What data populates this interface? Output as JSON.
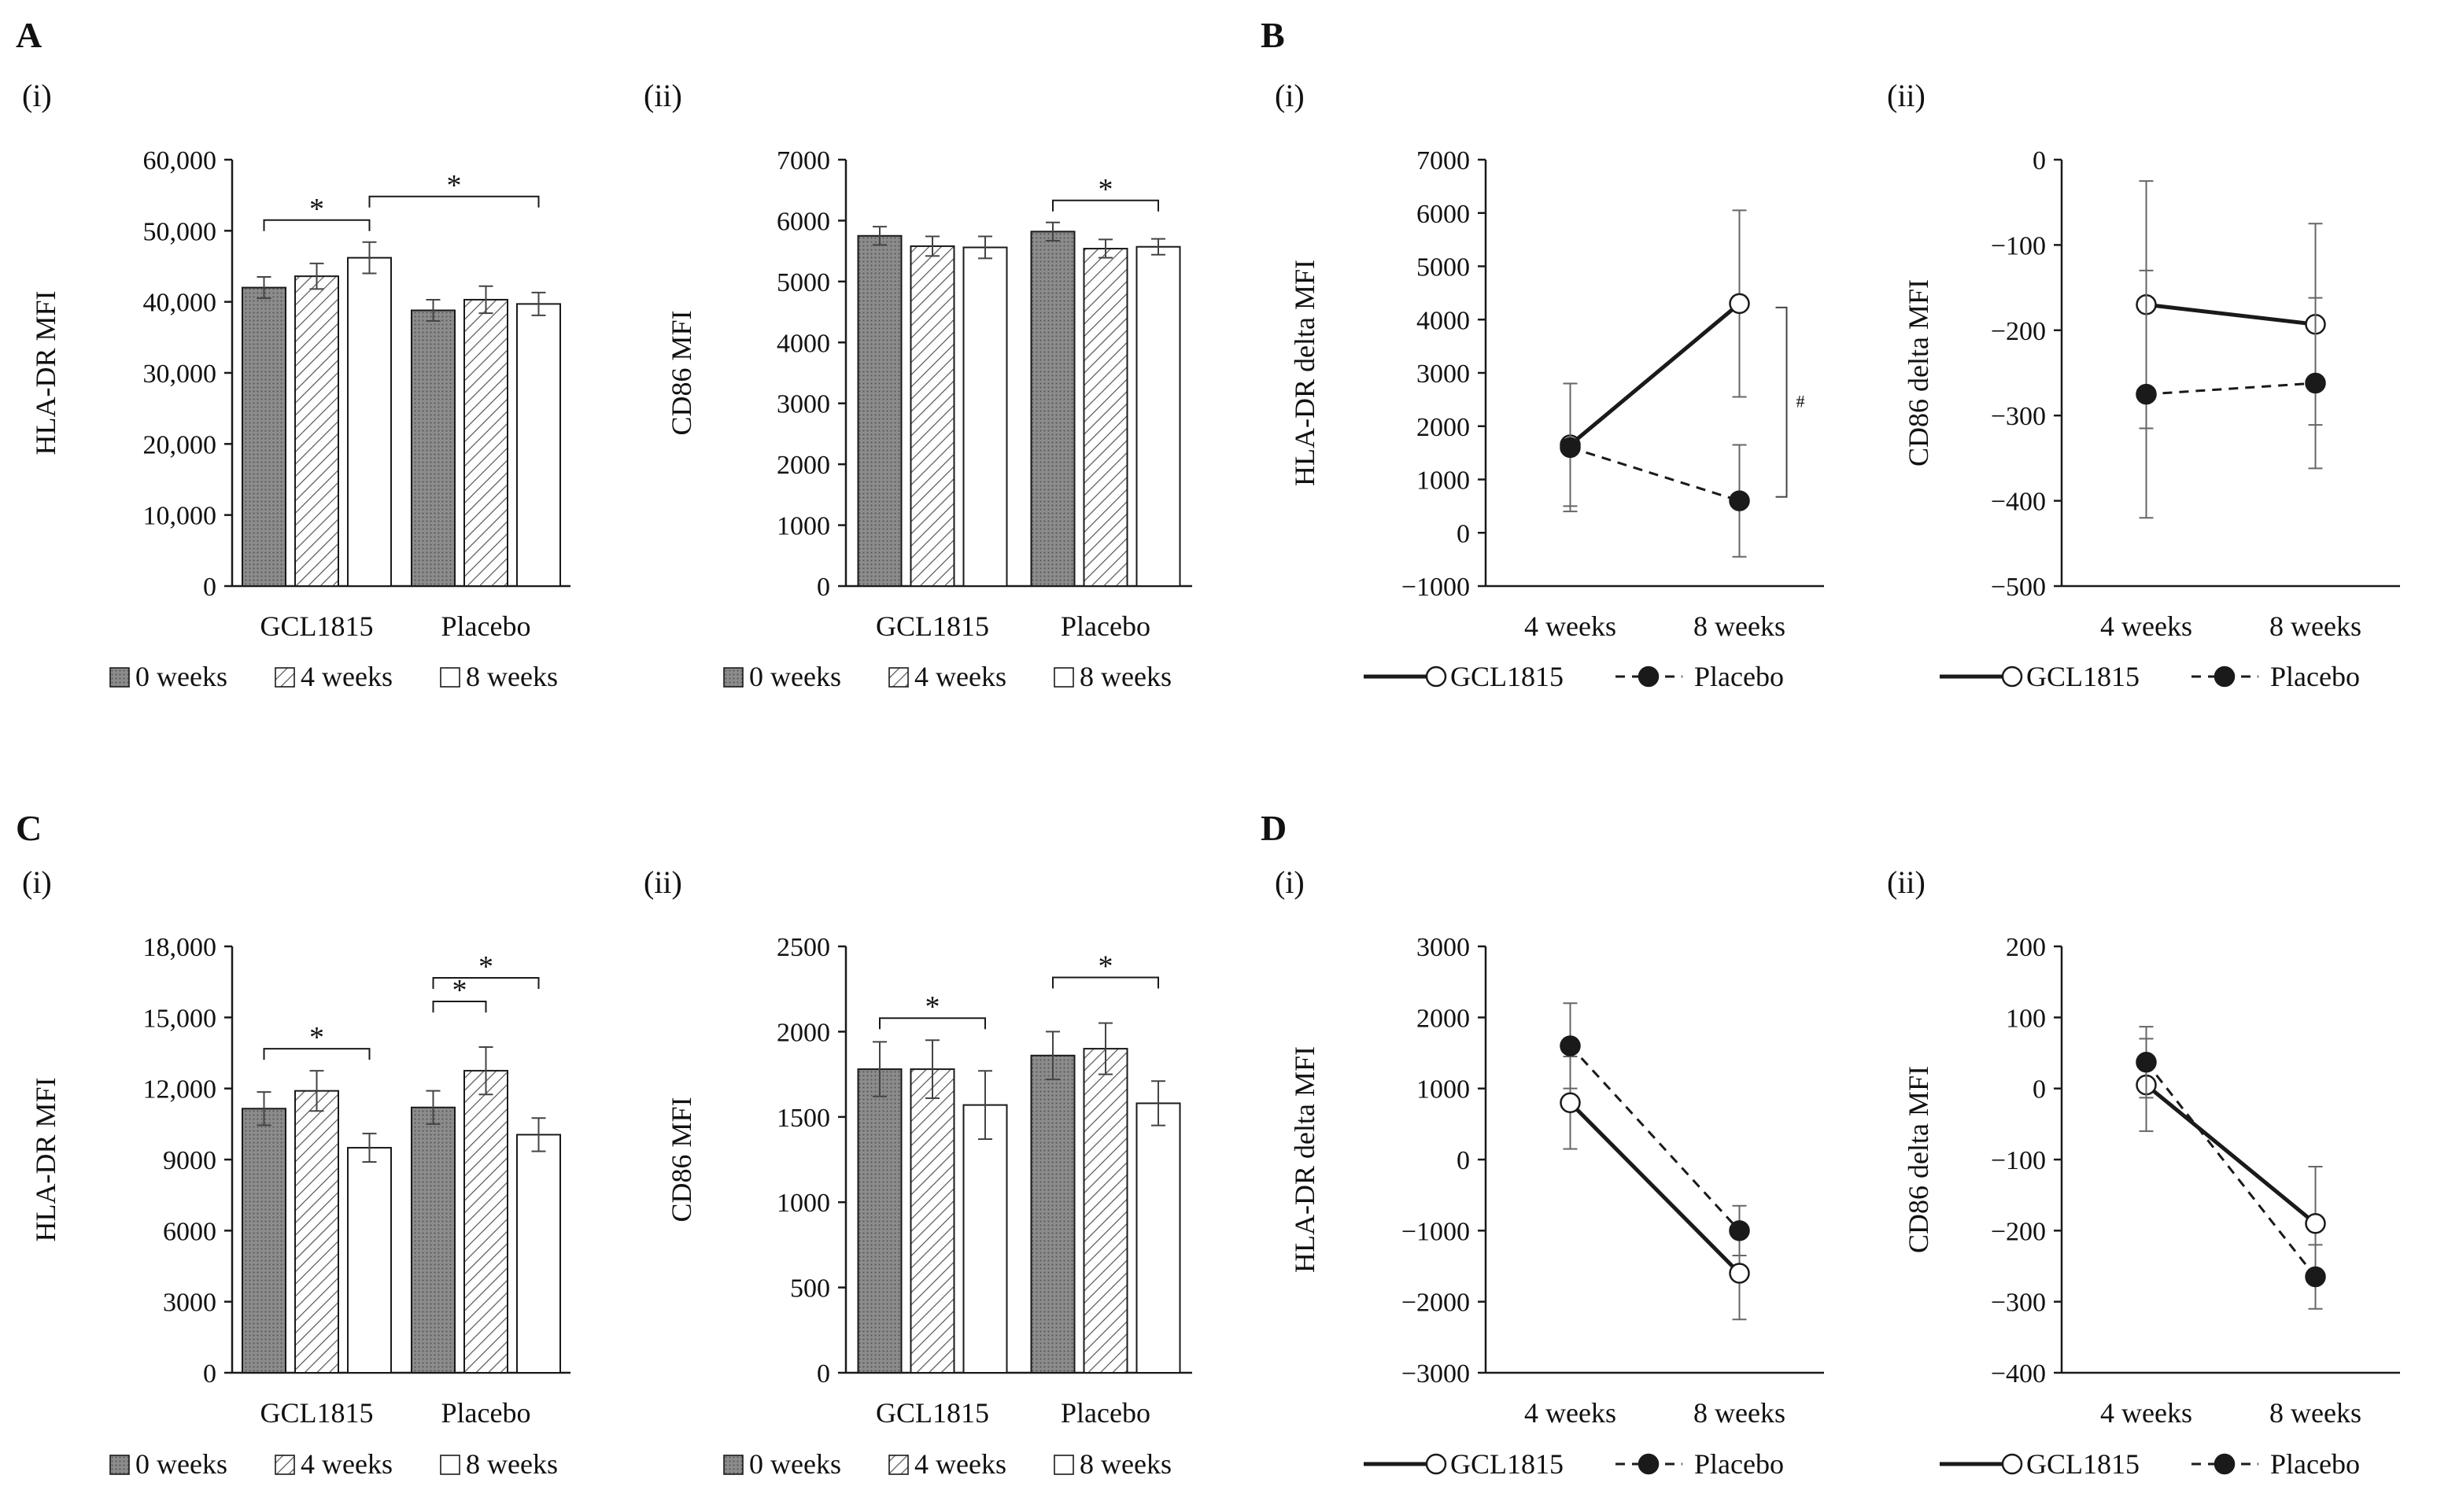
{
  "colors": {
    "ink": "#1a1a1a",
    "bar_dark": "#7a7a7a",
    "bar_hatch": "#555555",
    "bar_white": "#ffffff",
    "axis": "#222222"
  },
  "figure": {
    "panel_letters": [
      "A",
      "B",
      "C",
      "D"
    ],
    "sub_labels": [
      "(i)",
      "(ii)"
    ]
  },
  "chart_data": [
    {
      "id": "A-i",
      "type": "bar",
      "panel": "A",
      "sub": "(i)",
      "ylabel": "HLA-DR MFI",
      "ylim": [
        0,
        60000
      ],
      "ytick_step": 10000,
      "yticks_labels": [
        "0",
        "10,000",
        "20,000",
        "30,000",
        "40,000",
        "50,000",
        "60,000"
      ],
      "categories": [
        "GCL1815",
        "Placebo"
      ],
      "legend": [
        "0 weeks",
        "4 weeks",
        "8 weeks"
      ],
      "series": [
        {
          "name": "0 weeks",
          "values": [
            42000,
            38800
          ],
          "errors": [
            1500,
            1500
          ]
        },
        {
          "name": "4 weeks",
          "values": [
            43600,
            40300
          ],
          "errors": [
            1800,
            1900
          ]
        },
        {
          "name": "8 weeks",
          "values": [
            46200,
            39700
          ],
          "errors": [
            2200,
            1600
          ]
        }
      ],
      "significance": [
        {
          "from": [
            0,
            0
          ],
          "to": [
            0,
            2
          ],
          "label": "*"
        },
        {
          "from": [
            0,
            2
          ],
          "to": [
            1,
            2
          ],
          "label": "*"
        }
      ]
    },
    {
      "id": "A-ii",
      "type": "bar",
      "panel": "A",
      "sub": "(ii)",
      "ylabel": "CD86 MFI",
      "ylim": [
        0,
        7000
      ],
      "ytick_step": 1000,
      "yticks_labels": [
        "0",
        "1000",
        "2000",
        "3000",
        "4000",
        "5000",
        "6000",
        "7000"
      ],
      "categories": [
        "GCL1815",
        "Placebo"
      ],
      "legend": [
        "0 weeks",
        "4 weeks",
        "8 weeks"
      ],
      "series": [
        {
          "name": "0 weeks",
          "values": [
            5750,
            5820
          ],
          "errors": [
            150,
            150
          ]
        },
        {
          "name": "4 weeks",
          "values": [
            5580,
            5540
          ],
          "errors": [
            160,
            150
          ]
        },
        {
          "name": "8 weeks",
          "values": [
            5560,
            5570
          ],
          "errors": [
            180,
            130
          ]
        }
      ],
      "significance": [
        {
          "from": [
            1,
            0
          ],
          "to": [
            1,
            2
          ],
          "label": "*"
        }
      ]
    },
    {
      "id": "B-i",
      "type": "line",
      "panel": "B",
      "sub": "(i)",
      "ylabel": "HLA-DR delta MFI",
      "ylim": [
        -1000,
        7000
      ],
      "ytick_step": 1000,
      "yticks_labels": [
        "−1000",
        "0",
        "1000",
        "2000",
        "3000",
        "4000",
        "5000",
        "6000",
        "7000"
      ],
      "categories": [
        "4 weeks",
        "8 weeks"
      ],
      "series": [
        {
          "name": "GCL1815",
          "values": [
            1650,
            4300
          ],
          "errors": [
            1150,
            1750
          ]
        },
        {
          "name": "Placebo",
          "values": [
            1600,
            600
          ],
          "errors": [
            1200,
            1050
          ]
        }
      ],
      "annotation": {
        "label": "#",
        "between": [
          "GCL1815",
          "Placebo"
        ],
        "at": 1
      }
    },
    {
      "id": "B-ii",
      "type": "line",
      "panel": "B",
      "sub": "(ii)",
      "ylabel": "CD86 delta MFI",
      "ylim": [
        -500,
        0
      ],
      "ytick_step": 100,
      "yticks_labels": [
        "−500",
        "−400",
        "−300",
        "−200",
        "−100",
        "0"
      ],
      "categories": [
        "4 weeks",
        "8 weeks"
      ],
      "series": [
        {
          "name": "GCL1815",
          "values": [
            -170,
            -193
          ],
          "errors": [
            145,
            118
          ]
        },
        {
          "name": "Placebo",
          "values": [
            -275,
            -262
          ],
          "errors": [
            145,
            100
          ]
        }
      ]
    },
    {
      "id": "C-i",
      "type": "bar",
      "panel": "C",
      "sub": "(i)",
      "ylabel": "HLA-DR MFI",
      "ylim": [
        0,
        18000
      ],
      "ytick_step": 3000,
      "yticks_labels": [
        "0",
        "3000",
        "6000",
        "9000",
        "12,000",
        "15,000",
        "18,000"
      ],
      "categories": [
        "GCL1815",
        "Placebo"
      ],
      "legend": [
        "0 weeks",
        "4 weeks",
        "8 weeks"
      ],
      "series": [
        {
          "name": "0 weeks",
          "values": [
            11150,
            11200
          ],
          "errors": [
            700,
            700
          ]
        },
        {
          "name": "4 weeks",
          "values": [
            11900,
            12750
          ],
          "errors": [
            850,
            1000
          ]
        },
        {
          "name": "8 weeks",
          "values": [
            9500,
            10050
          ],
          "errors": [
            600,
            700
          ]
        }
      ],
      "significance": [
        {
          "from": [
            0,
            0
          ],
          "to": [
            0,
            2
          ],
          "label": "*"
        },
        {
          "from": [
            1,
            0
          ],
          "to": [
            1,
            1
          ],
          "label": "*"
        },
        {
          "from": [
            1,
            0
          ],
          "to": [
            1,
            2
          ],
          "label": "*"
        }
      ]
    },
    {
      "id": "C-ii",
      "type": "bar",
      "panel": "C",
      "sub": "(ii)",
      "ylabel": "CD86 MFI",
      "ylim": [
        0,
        2500
      ],
      "ytick_step": 500,
      "yticks_labels": [
        "0",
        "500",
        "1000",
        "1500",
        "2000",
        "2500"
      ],
      "categories": [
        "GCL1815",
        "Placebo"
      ],
      "legend": [
        "0 weeks",
        "4 weeks",
        "8 weeks"
      ],
      "series": [
        {
          "name": "0 weeks",
          "values": [
            1780,
            1860
          ],
          "errors": [
            160,
            140
          ]
        },
        {
          "name": "4 weeks",
          "values": [
            1780,
            1900
          ],
          "errors": [
            170,
            150
          ]
        },
        {
          "name": "8 weeks",
          "values": [
            1570,
            1580
          ],
          "errors": [
            200,
            130
          ]
        }
      ],
      "significance": [
        {
          "from": [
            0,
            0
          ],
          "to": [
            0,
            2
          ],
          "label": "*"
        },
        {
          "from": [
            1,
            0
          ],
          "to": [
            1,
            2
          ],
          "label": "*"
        }
      ]
    },
    {
      "id": "D-i",
      "type": "line",
      "panel": "D",
      "sub": "(i)",
      "ylabel": "HLA-DR delta MFI",
      "ylim": [
        -3000,
        3000
      ],
      "ytick_step": 1000,
      "yticks_labels": [
        "−3000",
        "−2000",
        "−1000",
        "0",
        "1000",
        "2000",
        "3000"
      ],
      "categories": [
        "4 weeks",
        "8 weeks"
      ],
      "series": [
        {
          "name": "GCL1815",
          "values": [
            800,
            -1600
          ],
          "errors": [
            650,
            650
          ]
        },
        {
          "name": "Placebo",
          "values": [
            1600,
            -1000
          ],
          "errors": [
            600,
            350
          ]
        }
      ]
    },
    {
      "id": "D-ii",
      "type": "line",
      "panel": "D",
      "sub": "(ii)",
      "ylabel": "CD86 delta MFI",
      "ylim": [
        -400,
        200
      ],
      "ytick_step": 100,
      "yticks_labels": [
        "−400",
        "−300",
        "−200",
        "−100",
        "0",
        "100",
        "200"
      ],
      "categories": [
        "4 weeks",
        "8 weeks"
      ],
      "series": [
        {
          "name": "GCL1815",
          "values": [
            5,
            -190
          ],
          "errors": [
            65,
            80
          ]
        },
        {
          "name": "Placebo",
          "values": [
            37,
            -265
          ],
          "errors": [
            50,
            45
          ]
        }
      ]
    }
  ]
}
